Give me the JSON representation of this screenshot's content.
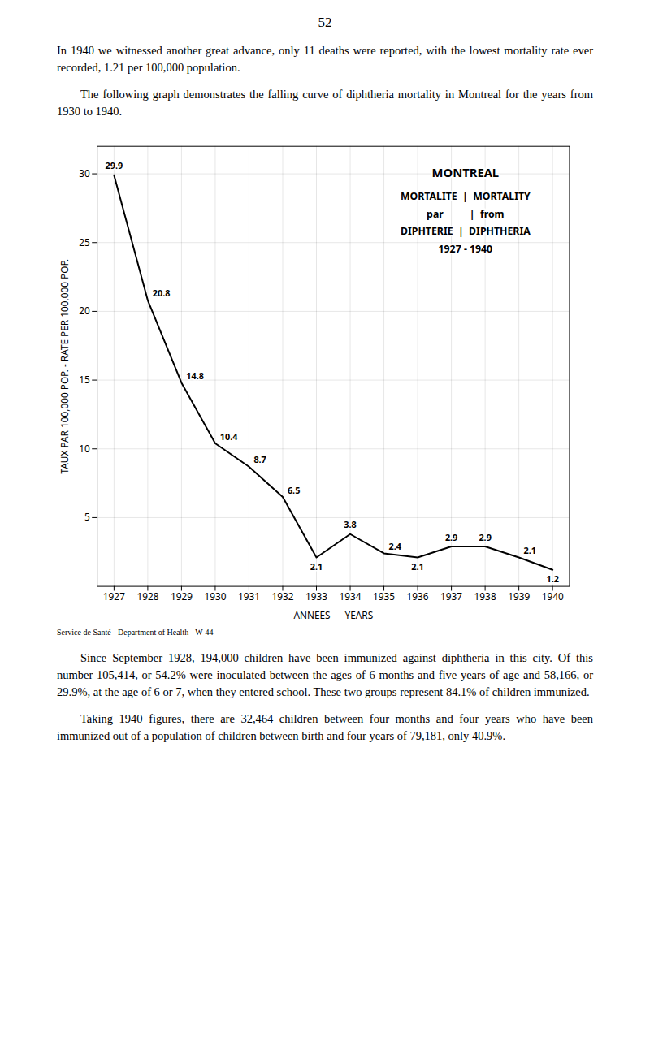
{
  "page_number": "52",
  "paragraphs": [
    "In 1940 we witnessed another great advance, only 11 deaths were reported, with the lowest mortality rate ever recorded, 1.21 per 100,000 population.",
    "The following graph demonstrates the falling curve of diphtheria mortality in Montreal for the years from 1930 to 1940.",
    "Since September 1928, 194,000 children have been immunized against diphtheria in this city.  Of this number 105,414, or 54.2% were inoculated between the ages of 6 months and five years of age and 58,166, or 29.9%, at the age of 6 or 7, when they entered school.  These two groups represent 84.1% of children immunized.",
    "Taking 1940 figures, there are 32,464 children between four months and four years who have been immunized out of a population of children between birth and four years of 79,181, only 40.9%."
  ],
  "chart_data": {
    "type": "line",
    "title": "MONTREAL",
    "annotations": [
      "MORTALITE  |  MORTALITY",
      "par          |  from",
      "DIPHTERIE  |  DIPHTHERIA",
      "1927 - 1940"
    ],
    "caption": "Service de Santé - Department of Health - W-44",
    "x": [
      1927,
      1928,
      1929,
      1930,
      1931,
      1932,
      1933,
      1934,
      1935,
      1936,
      1937,
      1938,
      1939,
      1940
    ],
    "values": [
      29.9,
      20.8,
      14.8,
      10.4,
      8.7,
      6.5,
      2.1,
      3.8,
      2.4,
      2.1,
      2.9,
      2.9,
      2.1,
      1.2
    ],
    "color": "#000000",
    "xlim": [
      1926.5,
      1940.5
    ],
    "xticks": [
      1927,
      1928,
      1929,
      1930,
      1931,
      1932,
      1933,
      1934,
      1935,
      1936,
      1937,
      1938,
      1939,
      1940
    ],
    "ylim": [
      0,
      32
    ],
    "yticks": [
      5,
      10,
      15,
      20,
      25,
      30
    ],
    "xlabel": "ANNEES — YEARS",
    "ylabel": "TAUX PAR 100,000 POP. - RATE PER 100,000 POP.",
    "grid": true,
    "data_labels": true
  }
}
